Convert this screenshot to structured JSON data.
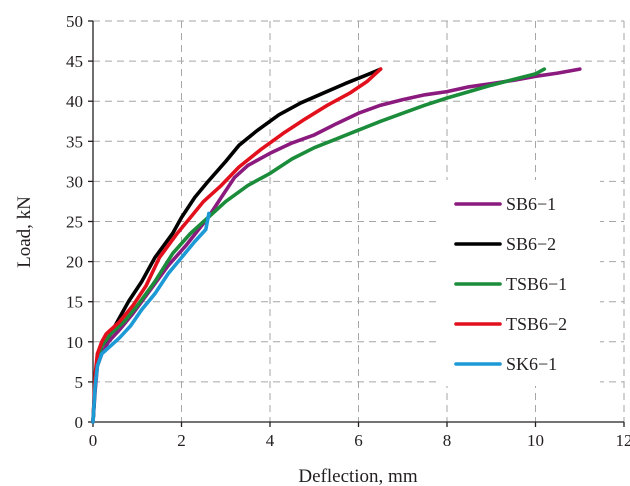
{
  "chart_data": {
    "type": "line",
    "title": "",
    "xlabel": "Deflection, mm",
    "ylabel": "Load, kN",
    "xlim": [
      0,
      12
    ],
    "ylim": [
      0,
      50
    ],
    "xticks": [
      0,
      2,
      4,
      6,
      8,
      10,
      12
    ],
    "yticks": [
      0,
      5,
      10,
      15,
      20,
      25,
      30,
      35,
      40,
      45,
      50
    ],
    "grid": true,
    "legend_position": "right",
    "series": [
      {
        "name": "SB6−1",
        "color": "#8b1a7e",
        "points": [
          [
            0,
            0
          ],
          [
            0.05,
            4
          ],
          [
            0.1,
            7
          ],
          [
            0.2,
            8.5
          ],
          [
            0.35,
            10
          ],
          [
            0.6,
            11.5
          ],
          [
            0.9,
            13.5
          ],
          [
            1.3,
            16.5
          ],
          [
            1.7,
            19.5
          ],
          [
            2.1,
            22
          ],
          [
            2.6,
            25.5
          ],
          [
            2.9,
            28
          ],
          [
            3.2,
            30.5
          ],
          [
            3.5,
            32
          ],
          [
            4.0,
            33.5
          ],
          [
            4.5,
            34.8
          ],
          [
            5.0,
            35.8
          ],
          [
            5.5,
            37.2
          ],
          [
            6.0,
            38.5
          ],
          [
            6.5,
            39.5
          ],
          [
            7.0,
            40.2
          ],
          [
            7.5,
            40.8
          ],
          [
            8.0,
            41.2
          ],
          [
            8.5,
            41.8
          ],
          [
            9.0,
            42.2
          ],
          [
            9.5,
            42.6
          ],
          [
            10.0,
            43.1
          ],
          [
            10.5,
            43.5
          ],
          [
            11.0,
            44
          ]
        ]
      },
      {
        "name": "SB6−2",
        "color": "#000000",
        "points": [
          [
            0,
            0
          ],
          [
            0.05,
            5
          ],
          [
            0.1,
            8
          ],
          [
            0.2,
            9.5
          ],
          [
            0.4,
            11
          ],
          [
            0.6,
            13
          ],
          [
            0.8,
            15
          ],
          [
            1.1,
            17.5
          ],
          [
            1.4,
            20.5
          ],
          [
            1.8,
            23.5
          ],
          [
            2.0,
            25.5
          ],
          [
            2.3,
            28
          ],
          [
            2.6,
            30
          ],
          [
            3.0,
            32.5
          ],
          [
            3.3,
            34.5
          ],
          [
            3.7,
            36.3
          ],
          [
            4.2,
            38.3
          ],
          [
            4.7,
            39.8
          ],
          [
            5.2,
            41
          ],
          [
            5.7,
            42.2
          ],
          [
            6.2,
            43.3
          ],
          [
            6.5,
            44
          ]
        ]
      },
      {
        "name": "TSB6−1",
        "color": "#1a8c3a",
        "points": [
          [
            0,
            0
          ],
          [
            0.05,
            5
          ],
          [
            0.1,
            8
          ],
          [
            0.2,
            9.5
          ],
          [
            0.4,
            11
          ],
          [
            0.7,
            12.5
          ],
          [
            1.0,
            14.5
          ],
          [
            1.4,
            17.5
          ],
          [
            1.8,
            21
          ],
          [
            2.2,
            23.5
          ],
          [
            2.6,
            25.5
          ],
          [
            3.0,
            27.5
          ],
          [
            3.5,
            29.5
          ],
          [
            4.0,
            31
          ],
          [
            4.5,
            32.8
          ],
          [
            5.0,
            34.2
          ],
          [
            5.5,
            35.3
          ],
          [
            6.0,
            36.4
          ],
          [
            6.5,
            37.5
          ],
          [
            7.0,
            38.5
          ],
          [
            7.5,
            39.5
          ],
          [
            8.0,
            40.4
          ],
          [
            8.5,
            41.2
          ],
          [
            9.0,
            42
          ],
          [
            9.5,
            42.7
          ],
          [
            10.0,
            43.4
          ],
          [
            10.2,
            44
          ]
        ]
      },
      {
        "name": "TSB6−2",
        "color": "#e2101c",
        "points": [
          [
            0,
            0
          ],
          [
            0.05,
            6
          ],
          [
            0.1,
            8.5
          ],
          [
            0.2,
            10
          ],
          [
            0.3,
            11
          ],
          [
            0.6,
            12.5
          ],
          [
            0.9,
            14.5
          ],
          [
            1.2,
            17
          ],
          [
            1.5,
            20.5
          ],
          [
            1.9,
            23.5
          ],
          [
            2.2,
            25.5
          ],
          [
            2.5,
            27.5
          ],
          [
            2.9,
            29.5
          ],
          [
            3.3,
            31.8
          ],
          [
            3.8,
            34
          ],
          [
            4.3,
            36
          ],
          [
            4.8,
            37.8
          ],
          [
            5.3,
            39.5
          ],
          [
            5.8,
            41
          ],
          [
            6.2,
            42.5
          ],
          [
            6.5,
            44
          ]
        ]
      },
      {
        "name": "SK6−1",
        "color": "#1c9ad6",
        "points": [
          [
            0,
            0
          ],
          [
            0.02,
            2
          ],
          [
            0.05,
            4.5
          ],
          [
            0.1,
            7
          ],
          [
            0.2,
            8.5
          ],
          [
            0.4,
            9.5
          ],
          [
            0.6,
            10.5
          ],
          [
            0.85,
            12
          ],
          [
            1.1,
            14
          ],
          [
            1.4,
            16
          ],
          [
            1.7,
            18.5
          ],
          [
            2.0,
            20.5
          ],
          [
            2.3,
            22.5
          ],
          [
            2.55,
            24
          ],
          [
            2.62,
            26
          ]
        ]
      }
    ]
  }
}
